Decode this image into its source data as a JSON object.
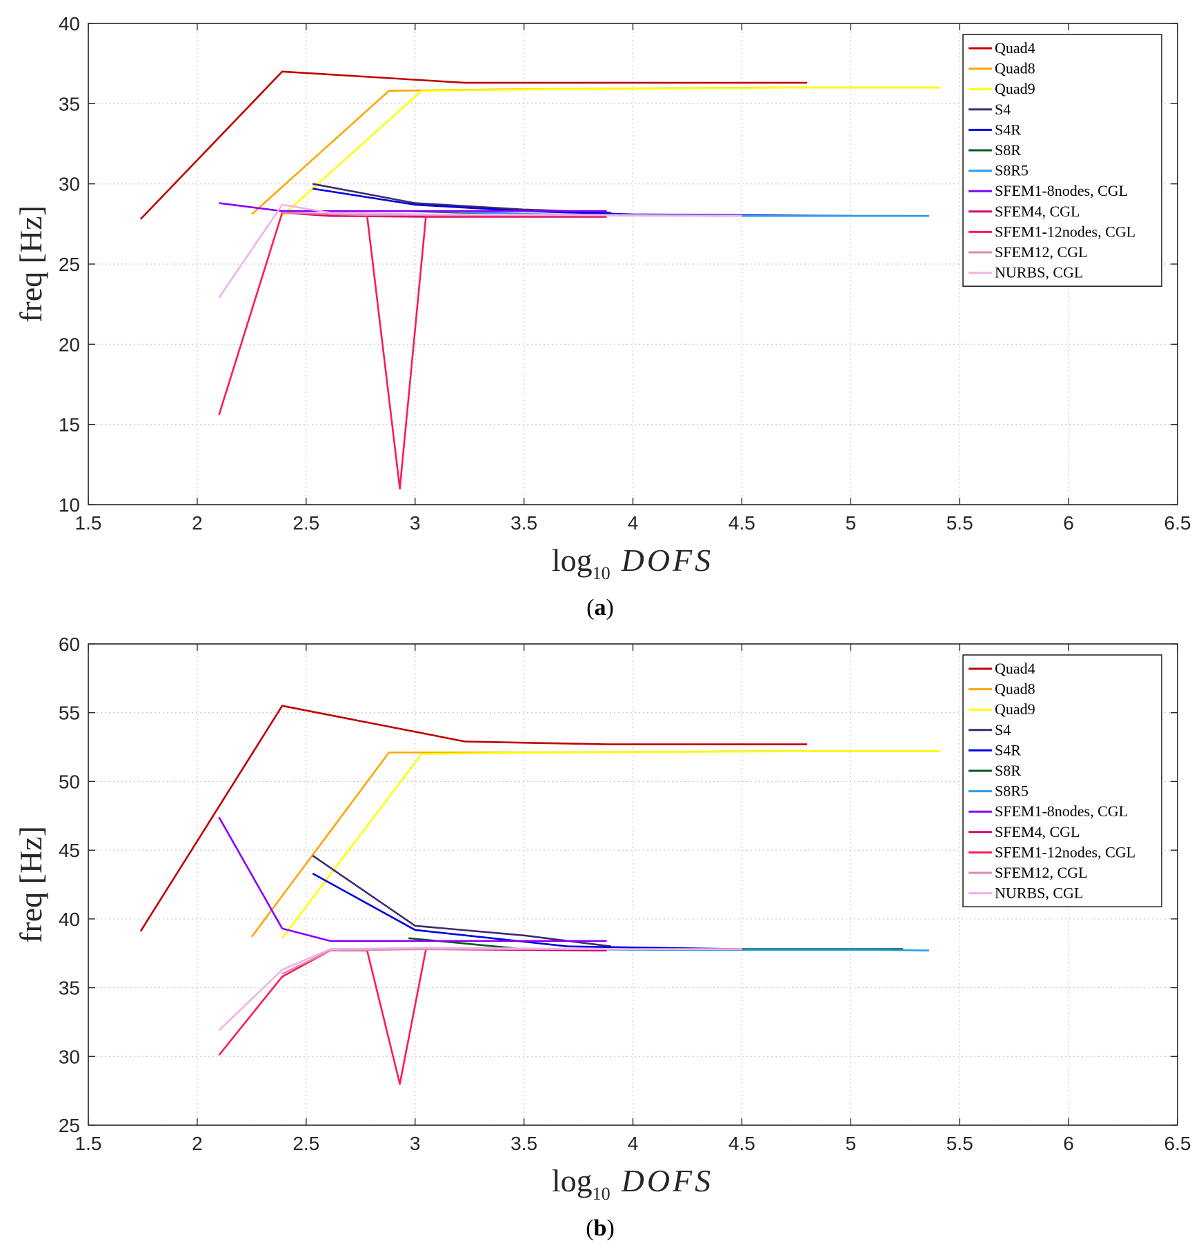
{
  "chart_data": [
    {
      "type": "line",
      "panel_label": "a",
      "xlabel_main": "log",
      "xlabel_sub": "10",
      "xlabel_var": "DOFS",
      "ylabel": "freq [Hz]",
      "xlim": [
        1.5,
        6.5
      ],
      "ylim": [
        10,
        40
      ],
      "xticks": [
        "1.5",
        "2",
        "2.5",
        "3",
        "3.5",
        "4",
        "4.5",
        "5",
        "5.5",
        "6",
        "6.5"
      ],
      "yticks": [
        "10",
        "15",
        "20",
        "25",
        "30",
        "35",
        "40"
      ],
      "grid": true,
      "legend_position": "top-right",
      "series": [
        {
          "name": "Quad4",
          "color": "#c00000",
          "x": [
            1.74,
            2.39,
            3.23,
            4.8
          ],
          "y": [
            27.8,
            37.0,
            36.3,
            36.3
          ]
        },
        {
          "name": "Quad8",
          "color": "#ffa500",
          "x": [
            2.25,
            2.88,
            3.47,
            4.05,
            4.64,
            5.4
          ],
          "y": [
            28.1,
            35.8,
            35.9,
            35.95,
            36.0,
            36.0
          ]
        },
        {
          "name": "Quad9",
          "color": "#ffff00",
          "x": [
            2.39,
            3.03,
            3.62,
            4.2,
            4.79,
            5.41
          ],
          "y": [
            28.0,
            35.8,
            35.9,
            35.95,
            36.0,
            36.0
          ]
        },
        {
          "name": "S4",
          "color": "#3f2a6f",
          "x": [
            2.53,
            3.0,
            3.5,
            3.9
          ],
          "y": [
            30.0,
            28.8,
            28.4,
            28.2
          ]
        },
        {
          "name": "S4R",
          "color": "#0000e0",
          "x": [
            2.53,
            3.0,
            3.5,
            4.0,
            4.5,
            5.0
          ],
          "y": [
            29.7,
            28.7,
            28.3,
            28.1,
            28.05,
            28.0
          ]
        },
        {
          "name": "S8R",
          "color": "#005a1f",
          "x": [
            2.97,
            3.5,
            4.0,
            4.5,
            5.0,
            5.24
          ],
          "y": [
            28.3,
            28.1,
            28.05,
            28.0,
            28.0,
            28.0
          ]
        },
        {
          "name": "S8R5",
          "color": "#2a9bf0",
          "x": [
            3.05,
            3.6,
            4.1,
            4.6,
            5.1,
            5.36
          ],
          "y": [
            28.3,
            28.1,
            28.05,
            28.0,
            28.0,
            28.0
          ]
        },
        {
          "name": "SFEM1-8nodes, CGL",
          "color": "#8800ff",
          "x": [
            2.1,
            2.39,
            3.0,
            3.88
          ],
          "y": [
            28.8,
            28.3,
            28.3,
            28.3
          ]
        },
        {
          "name": "SFEM4, CGL",
          "color": "#d6006e",
          "x": [
            2.39,
            2.61,
            3.05,
            3.88
          ],
          "y": [
            28.2,
            28.0,
            27.95,
            27.95
          ]
        },
        {
          "name": "SFEM1-12nodes, CGL",
          "color": "#ff1a55",
          "x": [
            2.1,
            2.39,
            2.78,
            2.93,
            3.05,
            3.5,
            3.88
          ],
          "y": [
            15.6,
            28.2,
            28.0,
            11.0,
            28.0,
            28.0,
            28.0
          ]
        },
        {
          "name": "SFEM12, CGL",
          "color": "#d98ab8",
          "x": [
            2.39,
            2.78,
            3.5,
            4.5
          ],
          "y": [
            28.2,
            28.05,
            28.05,
            28.0
          ]
        },
        {
          "name": "NURBS, CGL",
          "color": "#f2b1e8",
          "x": [
            2.1,
            2.39,
            2.61,
            3.05,
            4.0,
            4.5
          ],
          "y": [
            22.9,
            28.7,
            28.2,
            28.1,
            28.05,
            28.0
          ]
        }
      ]
    },
    {
      "type": "line",
      "panel_label": "b",
      "xlabel_main": "log",
      "xlabel_sub": "10",
      "xlabel_var": "DOFS",
      "ylabel": "freq [Hz]",
      "xlim": [
        1.5,
        6.5
      ],
      "ylim": [
        25,
        60
      ],
      "xticks": [
        "1.5",
        "2",
        "2.5",
        "3",
        "3.5",
        "4",
        "4.5",
        "5",
        "5.5",
        "6",
        "6.5"
      ],
      "yticks": [
        "25",
        "30",
        "35",
        "40",
        "45",
        "50",
        "55",
        "60"
      ],
      "grid": true,
      "legend_position": "top-right",
      "series": [
        {
          "name": "Quad4",
          "color": "#c00000",
          "x": [
            1.74,
            2.39,
            3.23,
            3.88,
            4.8
          ],
          "y": [
            39.1,
            55.5,
            52.9,
            52.7,
            52.7
          ]
        },
        {
          "name": "Quad8",
          "color": "#ffa500",
          "x": [
            2.25,
            2.88,
            3.47,
            4.05,
            4.64,
            5.4
          ],
          "y": [
            38.7,
            52.1,
            52.1,
            52.15,
            52.2,
            52.2
          ]
        },
        {
          "name": "Quad9",
          "color": "#ffff00",
          "x": [
            2.39,
            3.03,
            3.62,
            4.2,
            4.79,
            5.41
          ],
          "y": [
            38.6,
            52.0,
            52.1,
            52.15,
            52.2,
            52.2
          ]
        },
        {
          "name": "S4",
          "color": "#3f2a6f",
          "x": [
            2.53,
            3.0,
            3.5,
            3.9
          ],
          "y": [
            44.6,
            39.5,
            38.8,
            38.0
          ]
        },
        {
          "name": "S4R",
          "color": "#0000e0",
          "x": [
            2.53,
            3.0,
            3.7,
            4.5,
            5.24
          ],
          "y": [
            43.3,
            39.2,
            38.0,
            37.8,
            37.8
          ]
        },
        {
          "name": "S8R",
          "color": "#005a1f",
          "x": [
            2.97,
            3.5,
            4.0,
            4.5,
            5.24
          ],
          "y": [
            38.6,
            37.8,
            37.8,
            37.8,
            37.8
          ]
        },
        {
          "name": "S8R5",
          "color": "#2a9bf0",
          "x": [
            3.05,
            3.6,
            4.1,
            4.6,
            5.1,
            5.36
          ],
          "y": [
            37.9,
            37.8,
            37.75,
            37.75,
            37.75,
            37.7
          ]
        },
        {
          "name": "SFEM1-8nodes, CGL",
          "color": "#8800ff",
          "x": [
            2.1,
            2.39,
            2.61,
            3.0,
            3.88
          ],
          "y": [
            47.4,
            39.3,
            38.4,
            38.4,
            38.4
          ]
        },
        {
          "name": "SFEM4, CGL",
          "color": "#d6006e",
          "x": [
            2.61,
            3.05,
            3.88
          ],
          "y": [
            37.8,
            37.8,
            37.7
          ]
        },
        {
          "name": "SFEM1-12nodes, CGL",
          "color": "#ff1a55",
          "x": [
            2.1,
            2.39,
            2.61,
            2.78,
            2.93,
            3.05,
            3.5,
            3.88
          ],
          "y": [
            30.1,
            35.8,
            37.7,
            37.7,
            28.0,
            37.8,
            37.8,
            37.8
          ]
        },
        {
          "name": "SFEM12, CGL",
          "color": "#d98ab8",
          "x": [
            2.39,
            2.61,
            3.05,
            3.5,
            4.5
          ],
          "y": [
            36.0,
            37.7,
            37.8,
            37.8,
            37.8
          ]
        },
        {
          "name": "NURBS, CGL",
          "color": "#f2b1e8",
          "x": [
            2.1,
            2.39,
            2.61,
            3.05,
            4.0,
            4.5
          ],
          "y": [
            31.9,
            36.3,
            37.8,
            37.9,
            37.8,
            37.8
          ]
        }
      ]
    }
  ]
}
